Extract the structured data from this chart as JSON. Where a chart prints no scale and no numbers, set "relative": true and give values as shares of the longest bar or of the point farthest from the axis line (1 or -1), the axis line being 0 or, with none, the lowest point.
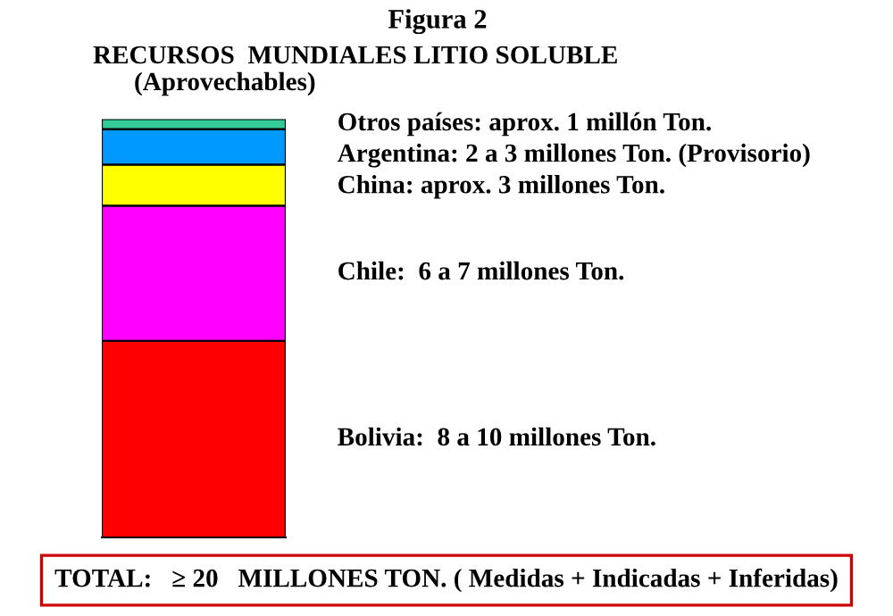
{
  "chart_data": {
    "type": "bar",
    "title": "Figura 2",
    "subtitle": "RECURSOS  MUNDIALES LITIO SOLUBLE\n(Aprovechables)",
    "categories": [
      null
    ],
    "stacked": true,
    "relative": true,
    "legend": false,
    "series": [
      {
        "name": "Bolivia:  8 a 10 millones Ton.",
        "color": "#ff0000",
        "values": [
          0.47
        ]
      },
      {
        "name": "Chile:  6 a 7 millones Ton.",
        "color": "#ff00ff",
        "values": [
          0.323
        ]
      },
      {
        "name": "China: aprox. 3 millones Ton.",
        "color": "#ffff00",
        "values": [
          0.098
        ]
      },
      {
        "name": "Argentina: 2 a 3 millones Ton. (Provisorio)",
        "color": "#0099ff",
        "values": [
          0.085
        ]
      },
      {
        "name": "Otros países: aprox. 1 millón Ton.",
        "color": "#33cc99",
        "values": [
          0.024
        ]
      }
    ],
    "annotations": [
      "TOTAL:   ≥ 20   MILLONES TON. ( Medidas + Indicadas + Inferidas)"
    ]
  }
}
